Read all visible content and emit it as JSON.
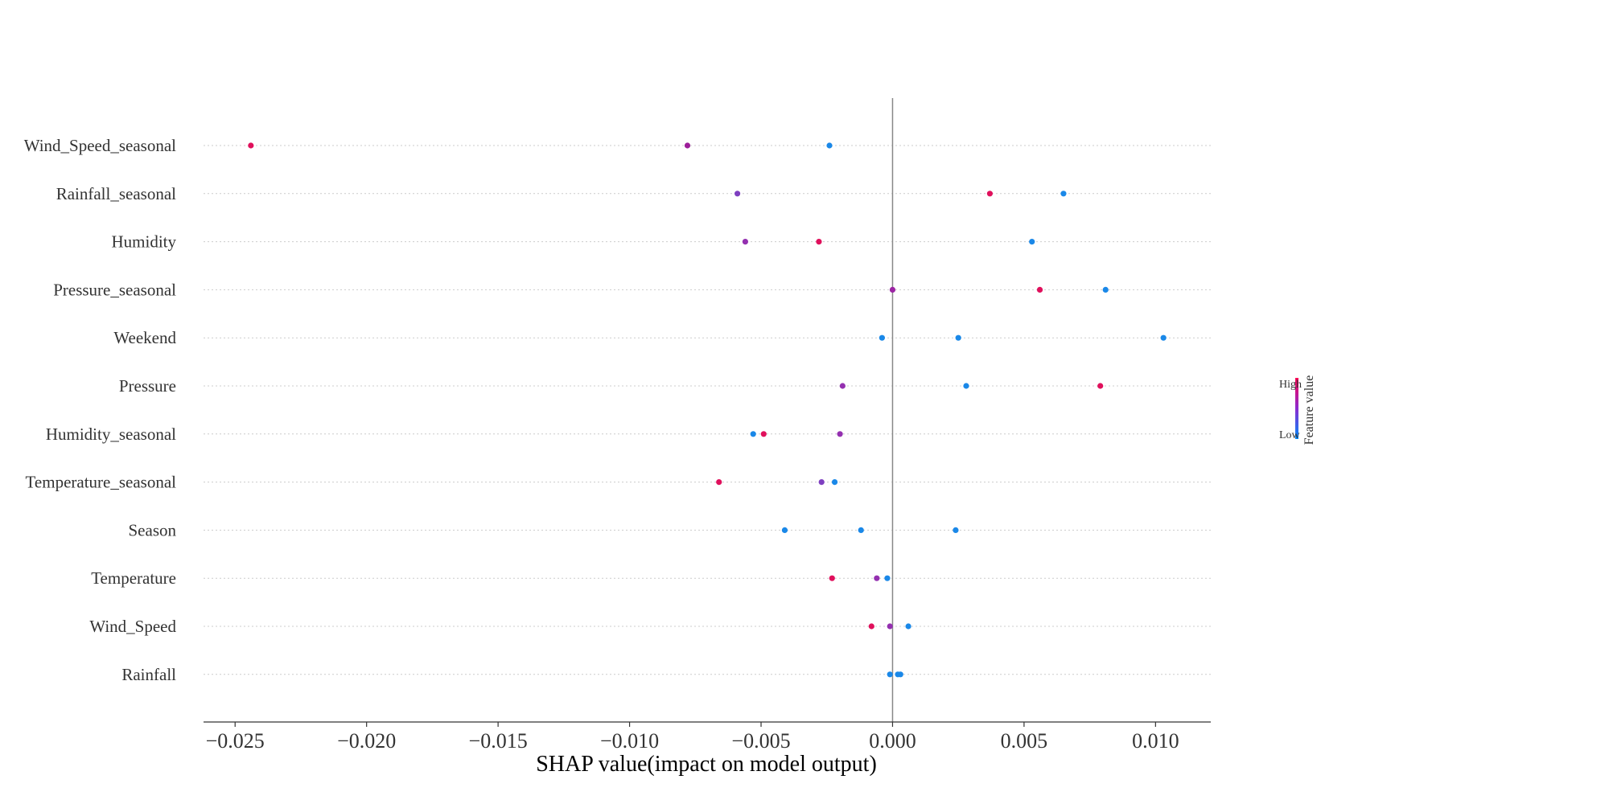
{
  "chart_data": {
    "type": "scatter",
    "subtype": "shap_summary_beeswarm",
    "title": "",
    "xlabel": "SHAP value(impact on model output)",
    "xlim": [
      -0.0262,
      0.0121
    ],
    "x_ticks": [
      -0.025,
      -0.02,
      -0.015,
      -0.01,
      -0.005,
      0.0,
      0.005,
      0.01
    ],
    "x_tick_labels": [
      "−0.025",
      "−0.020",
      "−0.015",
      "−0.010",
      "−0.005",
      "0.000",
      "0.005",
      "0.010"
    ],
    "grid": "dotted horizontal line per feature",
    "zero_line": true,
    "colorbar": {
      "title": "Feature value",
      "high_label": "High",
      "low_label": "Low",
      "high_color": "#ff0052",
      "low_color": "#008bfb",
      "placement": "right"
    },
    "features": [
      {
        "name": "Wind_Speed_seasonal",
        "points": [
          {
            "x": -0.0244,
            "color": "#e0105c"
          },
          {
            "x": -0.0078,
            "color": "#9d1e9a"
          },
          {
            "x": -0.0024,
            "color": "#1a88e8"
          }
        ]
      },
      {
        "name": "Rainfall_seasonal",
        "points": [
          {
            "x": -0.0059,
            "color": "#7e3fc0"
          },
          {
            "x": 0.0037,
            "color": "#e0105c"
          },
          {
            "x": 0.0065,
            "color": "#1a88e8"
          }
        ]
      },
      {
        "name": "Humidity",
        "points": [
          {
            "x": -0.0056,
            "color": "#9430b0"
          },
          {
            "x": -0.0028,
            "color": "#e0105c"
          },
          {
            "x": 0.0053,
            "color": "#1a88e8"
          }
        ]
      },
      {
        "name": "Pressure_seasonal",
        "points": [
          {
            "x": 0.0,
            "color": "#9c25a4"
          },
          {
            "x": 0.0056,
            "color": "#e0105c"
          },
          {
            "x": 0.0081,
            "color": "#1a88e8"
          }
        ]
      },
      {
        "name": "Weekend",
        "points": [
          {
            "x": -0.0004,
            "color": "#1a88e8"
          },
          {
            "x": 0.0025,
            "color": "#1a88e8"
          },
          {
            "x": 0.0103,
            "color": "#1a88e8"
          }
        ]
      },
      {
        "name": "Pressure",
        "points": [
          {
            "x": -0.0019,
            "color": "#9430b0"
          },
          {
            "x": 0.0028,
            "color": "#1a88e8"
          },
          {
            "x": 0.0079,
            "color": "#e0105c"
          }
        ]
      },
      {
        "name": "Humidity_seasonal",
        "points": [
          {
            "x": -0.0053,
            "color": "#1a88e8"
          },
          {
            "x": -0.0049,
            "color": "#e0105c"
          },
          {
            "x": -0.002,
            "color": "#9430b0"
          }
        ]
      },
      {
        "name": "Temperature_seasonal",
        "points": [
          {
            "x": -0.0066,
            "color": "#e0105c"
          },
          {
            "x": -0.0027,
            "color": "#7e3fc0"
          },
          {
            "x": -0.0022,
            "color": "#1a88e8"
          }
        ]
      },
      {
        "name": "Season",
        "points": [
          {
            "x": -0.0041,
            "color": "#1a88e8"
          },
          {
            "x": -0.0012,
            "color": "#1a88e8"
          },
          {
            "x": 0.0024,
            "color": "#1a88e8"
          }
        ]
      },
      {
        "name": "Temperature",
        "points": [
          {
            "x": -0.0023,
            "color": "#e0105c"
          },
          {
            "x": -0.0006,
            "color": "#9430b0"
          },
          {
            "x": -0.0002,
            "color": "#1a88e8"
          }
        ]
      },
      {
        "name": "Wind_Speed",
        "points": [
          {
            "x": -0.0008,
            "color": "#e0105c"
          },
          {
            "x": -0.0001,
            "color": "#9430b0"
          },
          {
            "x": 0.0006,
            "color": "#1a88e8"
          }
        ]
      },
      {
        "name": "Rainfall",
        "points": [
          {
            "x": -0.0001,
            "color": "#1a88e8"
          },
          {
            "x": 0.0002,
            "color": "#1a88e8"
          },
          {
            "x": 0.0003,
            "color": "#1a88e8"
          }
        ]
      }
    ]
  }
}
